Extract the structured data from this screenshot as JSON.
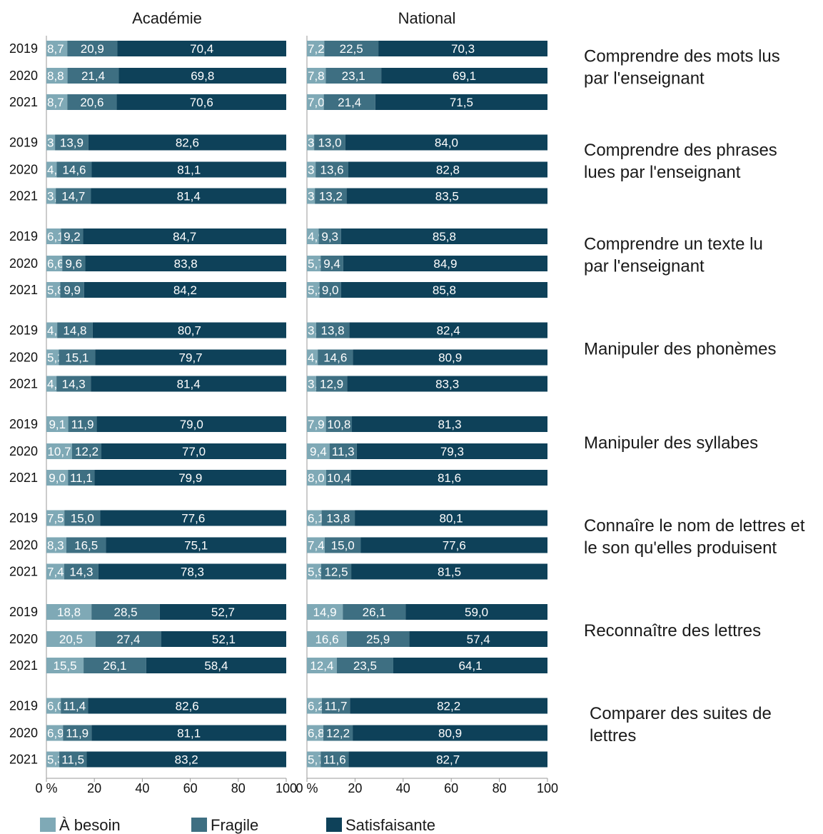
{
  "chart_data": {
    "type": "bar",
    "stacked": true,
    "orientation": "horizontal",
    "panels": [
      "Académie",
      "National"
    ],
    "years": [
      "2019",
      "2020",
      "2021"
    ],
    "xlim": [
      0,
      100
    ],
    "ticks": [
      "0 %",
      "20",
      "40",
      "60",
      "80",
      "100"
    ],
    "tick_values": [
      0,
      20,
      40,
      60,
      80,
      100
    ],
    "colors": {
      "besoin": "#7fa9b6",
      "fragile": "#3e6f82",
      "satisfaisante": "#0e4159"
    },
    "legend": [
      {
        "key": "besoin",
        "label": "À besoin"
      },
      {
        "key": "fragile",
        "label": "Fragile"
      },
      {
        "key": "satisfaisante",
        "label": "Satisfaisante"
      }
    ],
    "groups": [
      {
        "label_lines": [
          "Comprendre des mots lus",
          "par l'enseignant"
        ],
        "academie": [
          {
            "year": "2019",
            "besoin": "8,7",
            "fragile": "20,9",
            "satisfaisante": "70,4"
          },
          {
            "year": "2020",
            "besoin": "8,8",
            "fragile": "21,4",
            "satisfaisante": "69,8"
          },
          {
            "year": "2021",
            "besoin": "8,7",
            "fragile": "20,6",
            "satisfaisante": "70,6"
          }
        ],
        "national": [
          {
            "year": "2019",
            "besoin": "7,2",
            "fragile": "22,5",
            "satisfaisante": "70,3"
          },
          {
            "year": "2020",
            "besoin": "7,8",
            "fragile": "23,1",
            "satisfaisante": "69,1"
          },
          {
            "year": "2021",
            "besoin": "7,0",
            "fragile": "21,4",
            "satisfaisante": "71,5"
          }
        ]
      },
      {
        "label_lines": [
          "Comprendre des phrases",
          "lues par l'enseignant"
        ],
        "academie": [
          {
            "year": "2019",
            "besoin": "3,6",
            "fragile": "13,9",
            "satisfaisante": "82,6"
          },
          {
            "year": "2020",
            "besoin": "4,3",
            "fragile": "14,6",
            "satisfaisante": "81,1"
          },
          {
            "year": "2021",
            "besoin": "3,9",
            "fragile": "14,7",
            "satisfaisante": "81,4"
          }
        ],
        "national": [
          {
            "year": "2019",
            "besoin": "3,0",
            "fragile": "13,0",
            "satisfaisante": "84,0"
          },
          {
            "year": "2020",
            "besoin": "3,6",
            "fragile": "13,6",
            "satisfaisante": "82,8"
          },
          {
            "year": "2021",
            "besoin": "3,3",
            "fragile": "13,2",
            "satisfaisante": "83,5"
          }
        ]
      },
      {
        "label_lines": [
          "Comprendre un texte lu",
          "par l'enseignant"
        ],
        "academie": [
          {
            "year": "2019",
            "besoin": "6,1",
            "fragile": "9,2",
            "satisfaisante": "84,7"
          },
          {
            "year": "2020",
            "besoin": "6,6",
            "fragile": "9,6",
            "satisfaisante": "83,8"
          },
          {
            "year": "2021",
            "besoin": "5,8",
            "fragile": "9,9",
            "satisfaisante": "84,2"
          }
        ],
        "national": [
          {
            "year": "2019",
            "besoin": "4,9",
            "fragile": "9,3",
            "satisfaisante": "85,8"
          },
          {
            "year": "2020",
            "besoin": "5,7",
            "fragile": "9,4",
            "satisfaisante": "84,9"
          },
          {
            "year": "2021",
            "besoin": "5,2",
            "fragile": "9,0",
            "satisfaisante": "85,8"
          }
        ]
      },
      {
        "label_lines": [
          "Manipuler des phonèmes"
        ],
        "academie": [
          {
            "year": "2019",
            "besoin": "4,5",
            "fragile": "14,8",
            "satisfaisante": "80,7"
          },
          {
            "year": "2020",
            "besoin": "5,2",
            "fragile": "15,1",
            "satisfaisante": "79,7"
          },
          {
            "year": "2021",
            "besoin": "4,2",
            "fragile": "14,3",
            "satisfaisante": "81,4"
          }
        ],
        "national": [
          {
            "year": "2019",
            "besoin": "3,8",
            "fragile": "13,8",
            "satisfaisante": "82,4"
          },
          {
            "year": "2020",
            "besoin": "4,5",
            "fragile": "14,6",
            "satisfaisante": "80,9"
          },
          {
            "year": "2021",
            "besoin": "3,8",
            "fragile": "12,9",
            "satisfaisante": "83,3"
          }
        ]
      },
      {
        "label_lines": [
          "Manipuler des syllabes"
        ],
        "academie": [
          {
            "year": "2019",
            "besoin": "9,1",
            "fragile": "11,9",
            "satisfaisante": "79,0"
          },
          {
            "year": "2020",
            "besoin": "10,7",
            "fragile": "12,2",
            "satisfaisante": "77,0"
          },
          {
            "year": "2021",
            "besoin": "9,0",
            "fragile": "11,1",
            "satisfaisante": "79,9"
          }
        ],
        "national": [
          {
            "year": "2019",
            "besoin": "7,9",
            "fragile": "10,8",
            "satisfaisante": "81,3"
          },
          {
            "year": "2020",
            "besoin": "9,4",
            "fragile": "11,3",
            "satisfaisante": "79,3"
          },
          {
            "year": "2021",
            "besoin": "8,0",
            "fragile": "10,4",
            "satisfaisante": "81,6"
          }
        ]
      },
      {
        "label_lines": [
          "Connaîre le nom de lettres et",
          "le son qu'elles produisent"
        ],
        "academie": [
          {
            "year": "2019",
            "besoin": "7,5",
            "fragile": "15,0",
            "satisfaisante": "77,6"
          },
          {
            "year": "2020",
            "besoin": "8,3",
            "fragile": "16,5",
            "satisfaisante": "75,1"
          },
          {
            "year": "2021",
            "besoin": "7,4",
            "fragile": "14,3",
            "satisfaisante": "78,3"
          }
        ],
        "national": [
          {
            "year": "2019",
            "besoin": "6,1",
            "fragile": "13,8",
            "satisfaisante": "80,1"
          },
          {
            "year": "2020",
            "besoin": "7,4",
            "fragile": "15,0",
            "satisfaisante": "77,6"
          },
          {
            "year": "2021",
            "besoin": "5,9",
            "fragile": "12,5",
            "satisfaisante": "81,5"
          }
        ]
      },
      {
        "label_lines": [
          "Reconnaître des lettres"
        ],
        "academie": [
          {
            "year": "2019",
            "besoin": "18,8",
            "fragile": "28,5",
            "satisfaisante": "52,7"
          },
          {
            "year": "2020",
            "besoin": "20,5",
            "fragile": "27,4",
            "satisfaisante": "52,1"
          },
          {
            "year": "2021",
            "besoin": "15,5",
            "fragile": "26,1",
            "satisfaisante": "58,4"
          }
        ],
        "national": [
          {
            "year": "2019",
            "besoin": "14,9",
            "fragile": "26,1",
            "satisfaisante": "59,0"
          },
          {
            "year": "2020",
            "besoin": "16,6",
            "fragile": "25,9",
            "satisfaisante": "57,4"
          },
          {
            "year": "2021",
            "besoin": "12,4",
            "fragile": "23,5",
            "satisfaisante": "64,1"
          }
        ]
      },
      {
        "label_lines": [
          "Comparer des suites de",
          "lettres"
        ],
        "academie": [
          {
            "year": "2019",
            "besoin": "6,0",
            "fragile": "11,4",
            "satisfaisante": "82,6"
          },
          {
            "year": "2020",
            "besoin": "6,9",
            "fragile": "11,9",
            "satisfaisante": "81,1"
          },
          {
            "year": "2021",
            "besoin": "5,3",
            "fragile": "11,5",
            "satisfaisante": "83,2"
          }
        ],
        "national": [
          {
            "year": "2019",
            "besoin": "6,2",
            "fragile": "11,7",
            "satisfaisante": "82,2"
          },
          {
            "year": "2020",
            "besoin": "6,8",
            "fragile": "12,2",
            "satisfaisante": "80,9"
          },
          {
            "year": "2021",
            "besoin": "5,7",
            "fragile": "11,6",
            "satisfaisante": "82,7"
          }
        ]
      }
    ]
  }
}
